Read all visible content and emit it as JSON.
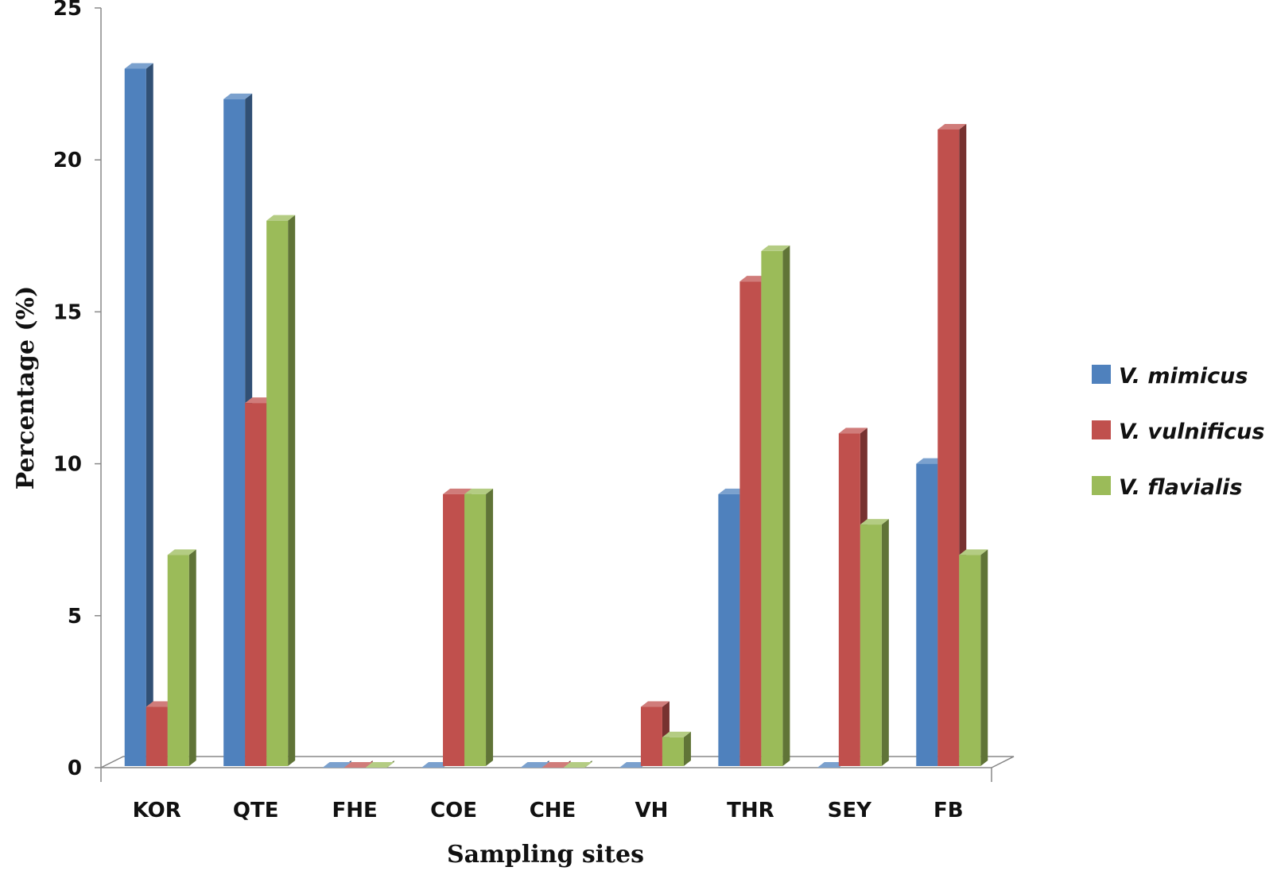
{
  "chart_data": {
    "type": "bar",
    "style": "3d-clustered-column",
    "title": "",
    "xlabel": "Sampling sites",
    "ylabel": "Percentage (%)",
    "ylim": [
      0,
      25
    ],
    "yticks": [
      0,
      5,
      10,
      15,
      20,
      25
    ],
    "categories": [
      "KOR",
      "QTE",
      "FHE",
      "COE",
      "CHE",
      "VH",
      "THR",
      "SEY",
      "FB"
    ],
    "series": [
      {
        "name": "V. mimicus",
        "color": "#4F81BD",
        "values": [
          23,
          22,
          0,
          0,
          0,
          0,
          9,
          0,
          10
        ]
      },
      {
        "name": "V. vulnificus",
        "color": "#C0504D",
        "values": [
          2,
          12,
          0,
          9,
          0,
          2,
          16,
          11,
          21
        ]
      },
      {
        "name": "V. flavialis",
        "color": "#9BBB59",
        "values": [
          7,
          18,
          0,
          9,
          0,
          1,
          17,
          8,
          7
        ]
      }
    ],
    "grid": false,
    "legend": "right"
  }
}
